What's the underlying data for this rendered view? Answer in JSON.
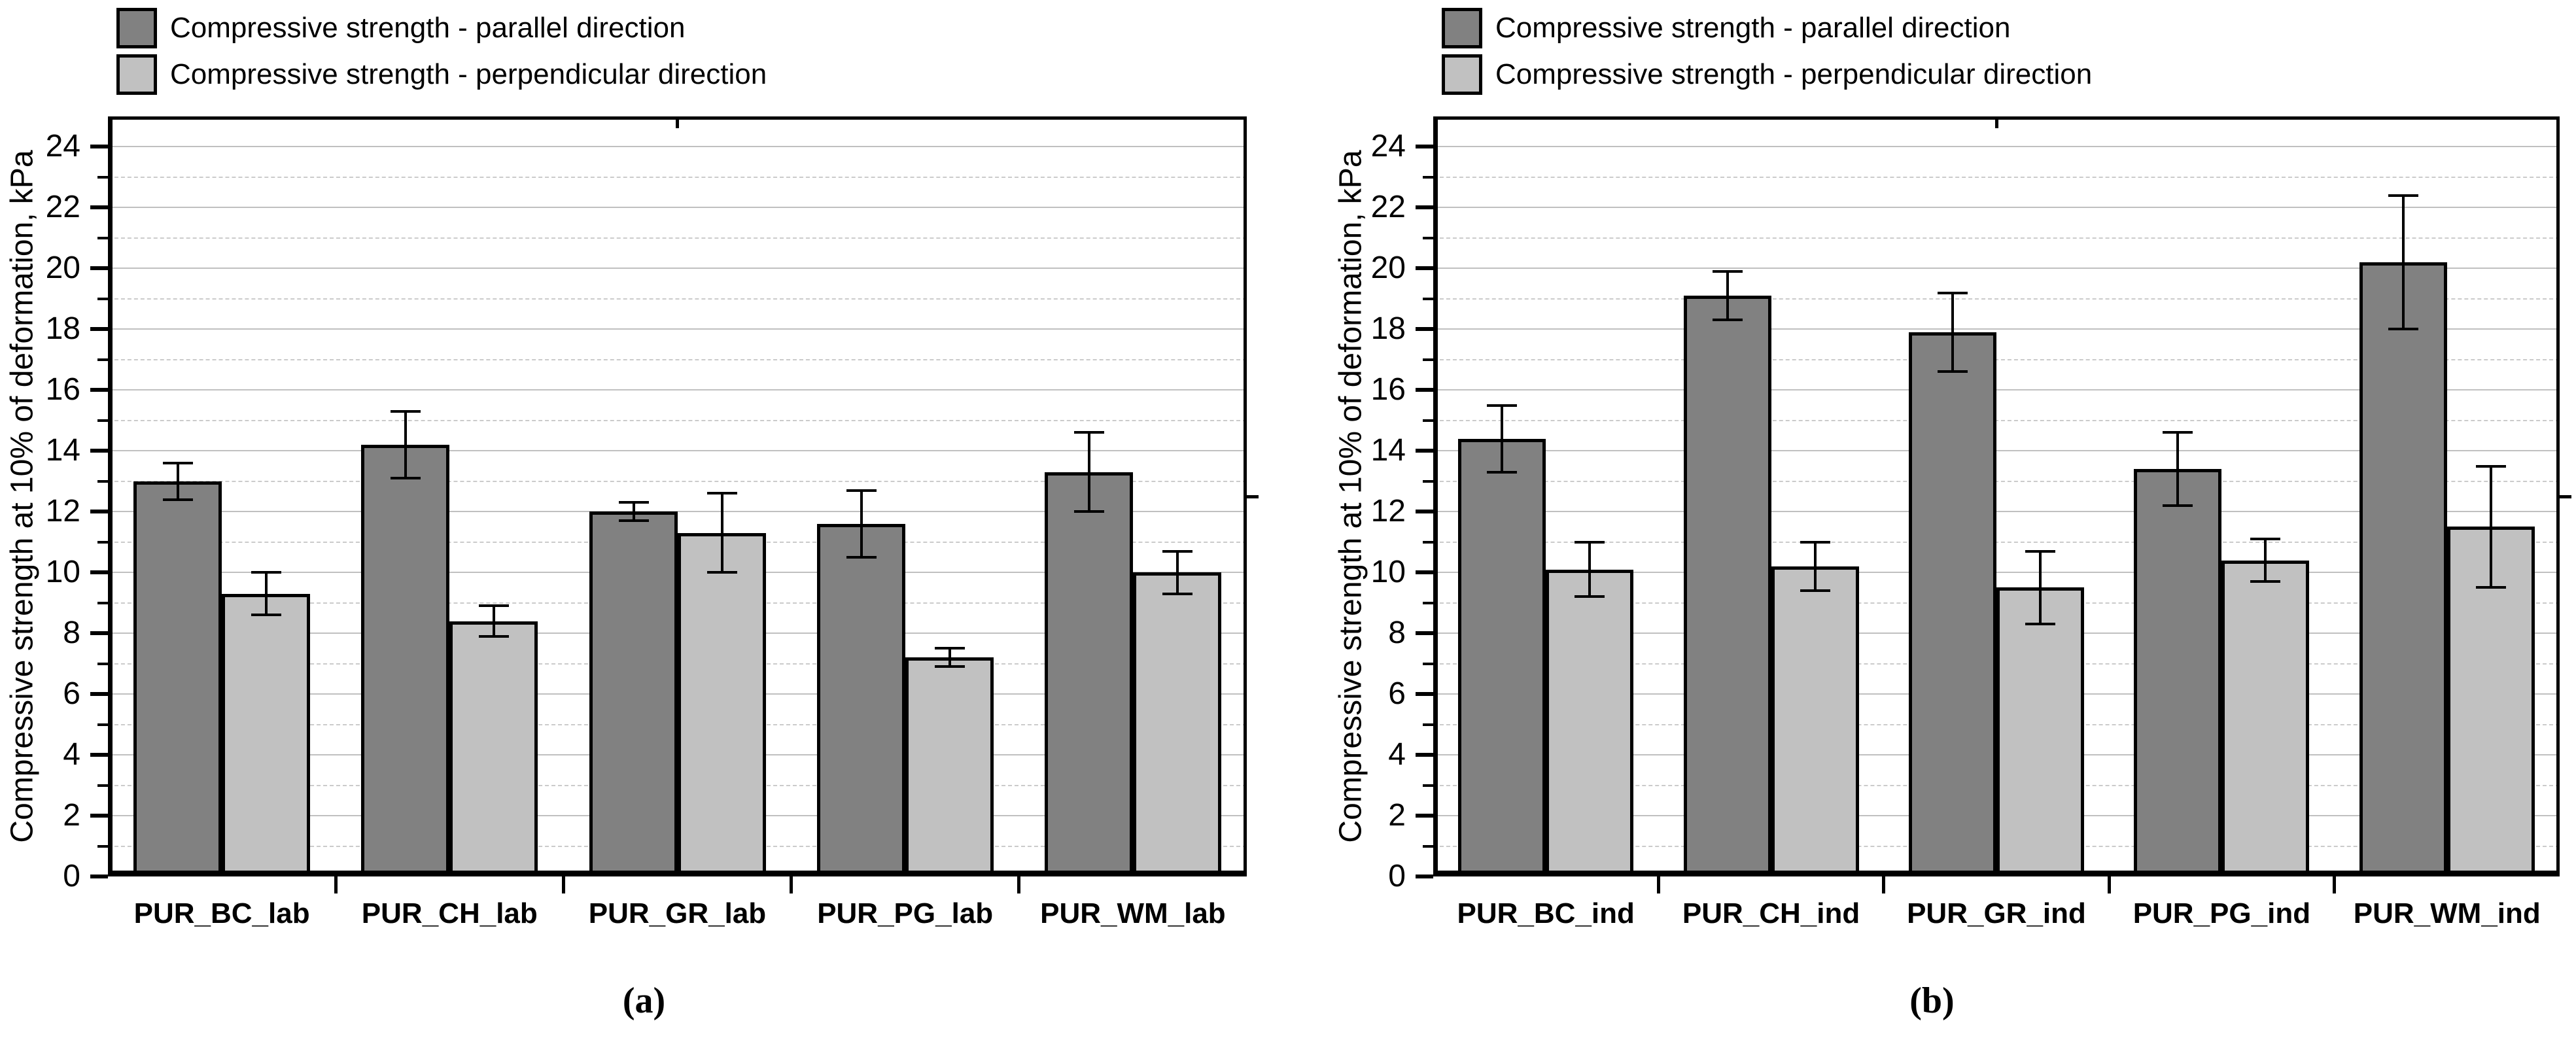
{
  "figure": {
    "type": "two-panel grouped bar chart with error bars",
    "background": "#ffffff",
    "colors": {
      "parallel": "#818181",
      "perpendicular": "#c1c1c1",
      "bar_border": "#000000",
      "axis": "#000000",
      "grid_solid": "#c0c0c0",
      "grid_dashed": "#cbcbcb",
      "error_bar": "#000000"
    }
  },
  "chart_data": [
    {
      "type": "bar",
      "panel": "left",
      "caption": "(a)",
      "title": "",
      "xlabel": "",
      "ylabel": "Compressive strength at 10% of deformation, kPa",
      "ylim": [
        0,
        25
      ],
      "ytick_step_labeled": 2,
      "ytick_minor_step": 1,
      "yticks": [
        0,
        2,
        4,
        6,
        8,
        10,
        12,
        14,
        16,
        18,
        20,
        22,
        24
      ],
      "grid": "horizontal: solid light lines at even kPa, dashed light lines at odd kPa",
      "legend_position": "top-left",
      "categories": [
        "PUR_BC_lab",
        "PUR_CH_lab",
        "PUR_GR_lab",
        "PUR_PG_lab",
        "PUR_WM_lab"
      ],
      "series": [
        {
          "name": "Compressive strength - parallel direction",
          "color_key": "parallel",
          "values": [
            13.0,
            14.2,
            12.0,
            11.6,
            13.3
          ],
          "errors": [
            0.6,
            1.1,
            0.3,
            1.1,
            1.3
          ]
        },
        {
          "name": "Compressive strength - perpendicular direction",
          "color_key": "perpendicular",
          "values": [
            9.3,
            8.4,
            11.3,
            7.2,
            10.0
          ],
          "errors": [
            0.7,
            0.5,
            1.3,
            0.3,
            0.7
          ]
        }
      ]
    },
    {
      "type": "bar",
      "panel": "right",
      "caption": "(b)",
      "title": "",
      "xlabel": "",
      "ylabel": "Compressive strength at 10% of deformation, kPa",
      "ylim": [
        0,
        25
      ],
      "ytick_step_labeled": 2,
      "ytick_minor_step": 1,
      "yticks": [
        0,
        2,
        4,
        6,
        8,
        10,
        12,
        14,
        16,
        18,
        20,
        22,
        24
      ],
      "grid": "horizontal: solid light lines at even kPa, dashed light lines at odd kPa",
      "legend_position": "top-left",
      "categories": [
        "PUR_BC_ind",
        "PUR_CH_ind",
        "PUR_GR_ind",
        "PUR_PG_ind",
        "PUR_WM_ind"
      ],
      "series": [
        {
          "name": "Compressive strength - parallel direction",
          "color_key": "parallel",
          "values": [
            14.4,
            19.1,
            17.9,
            13.4,
            20.2
          ],
          "errors": [
            1.1,
            0.8,
            1.3,
            1.2,
            2.2
          ]
        },
        {
          "name": "Compressive strength - perpendicular direction",
          "color_key": "perpendicular",
          "values": [
            10.1,
            10.2,
            9.5,
            10.4,
            11.5
          ],
          "errors": [
            0.9,
            0.8,
            1.2,
            0.7,
            2.0
          ]
        }
      ]
    }
  ]
}
